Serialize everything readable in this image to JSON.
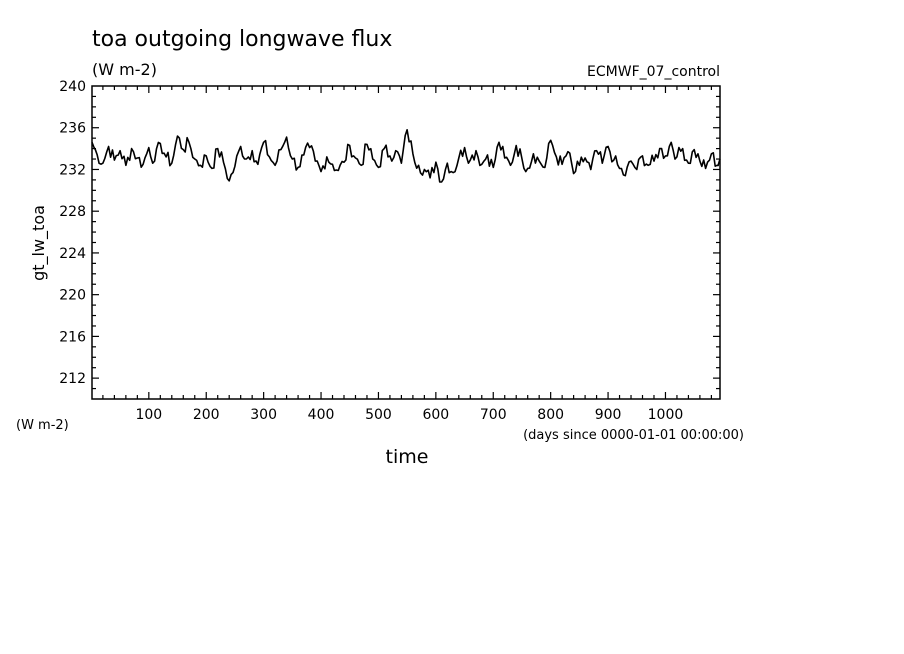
{
  "chart_data": {
    "type": "line",
    "title": "toa outgoing longwave flux",
    "subtitle": "(W m-2)",
    "dataset_label": "ECMWF_07_control",
    "ylabel": "gt_lw_toa",
    "yunit_label": "(W m-2)",
    "xlabel": "time",
    "xunit_label": "(days since 0000-01-01 00:00:00)",
    "xlim": [
      1,
      1095
    ],
    "ylim": [
      210,
      240
    ],
    "xticks": [
      100,
      200,
      300,
      400,
      500,
      600,
      700,
      800,
      900,
      1000
    ],
    "yticks": [
      212,
      216,
      220,
      224,
      228,
      232,
      236,
      240
    ],
    "grid": false,
    "series": [
      {
        "color": "#000000",
        "x": [
          1,
          10,
          20,
          30,
          40,
          50,
          60,
          70,
          80,
          90,
          100,
          110,
          120,
          130,
          140,
          150,
          160,
          170,
          180,
          190,
          200,
          210,
          220,
          230,
          240,
          250,
          260,
          270,
          280,
          290,
          300,
          310,
          320,
          330,
          340,
          350,
          360,
          370,
          380,
          390,
          400,
          410,
          420,
          430,
          440,
          450,
          460,
          470,
          480,
          490,
          500,
          510,
          520,
          530,
          540,
          550,
          560,
          570,
          580,
          590,
          600,
          610,
          620,
          630,
          640,
          650,
          660,
          670,
          680,
          690,
          700,
          710,
          720,
          730,
          740,
          750,
          760,
          770,
          780,
          790,
          800,
          810,
          820,
          830,
          840,
          850,
          860,
          870,
          880,
          890,
          900,
          910,
          920,
          930,
          940,
          950,
          960,
          970,
          980,
          990,
          1000,
          1010,
          1020,
          1030,
          1040,
          1050,
          1060,
          1070,
          1080,
          1090,
          1095
        ],
        "values": [
          234.6,
          233.4,
          232.6,
          234.2,
          232.9,
          233.8,
          232.4,
          234.0,
          233.1,
          232.5,
          234.1,
          232.8,
          234.5,
          233.2,
          232.6,
          235.2,
          233.9,
          234.6,
          233.0,
          232.4,
          233.3,
          232.1,
          234.0,
          232.7,
          230.9,
          232.3,
          234.2,
          233.0,
          233.8,
          232.5,
          234.6,
          233.2,
          232.4,
          233.9,
          235.1,
          233.0,
          232.2,
          233.4,
          234.1,
          232.8,
          231.8,
          233.2,
          232.5,
          231.9,
          232.7,
          234.3,
          233.1,
          232.4,
          234.4,
          233.0,
          232.2,
          234.0,
          233.3,
          233.8,
          232.6,
          235.8,
          233.5,
          232.4,
          232.0,
          231.2,
          232.7,
          230.8,
          232.6,
          231.7,
          233.1,
          234.1,
          232.9,
          233.8,
          232.5,
          233.4,
          232.2,
          234.6,
          233.1,
          232.4,
          234.3,
          233.0,
          232.1,
          233.5,
          232.8,
          232.2,
          234.8,
          233.2,
          232.5,
          233.7,
          231.6,
          232.4,
          233.1,
          232.0,
          233.8,
          232.6,
          234.2,
          232.9,
          232.1,
          231.4,
          232.8,
          232.0,
          233.3,
          232.4,
          232.8,
          234.0,
          233.3,
          234.6,
          233.2,
          234.0,
          232.6,
          233.9,
          232.8,
          232.1,
          233.5,
          232.4,
          233.0
        ]
      }
    ]
  }
}
